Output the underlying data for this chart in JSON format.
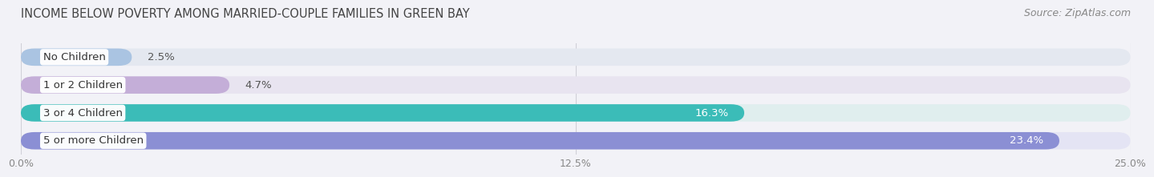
{
  "title": "INCOME BELOW POVERTY AMONG MARRIED-COUPLE FAMILIES IN GREEN BAY",
  "source": "Source: ZipAtlas.com",
  "categories": [
    "No Children",
    "1 or 2 Children",
    "3 or 4 Children",
    "5 or more Children"
  ],
  "values": [
    2.5,
    4.7,
    16.3,
    23.4
  ],
  "bar_colors": [
    "#aac4e2",
    "#c4aed8",
    "#3bbcb8",
    "#8b8fd4"
  ],
  "bar_background": [
    "#e4e8f0",
    "#e8e4f0",
    "#e0eeee",
    "#e4e4f4"
  ],
  "xlim": [
    0,
    25.0
  ],
  "xticks": [
    0.0,
    12.5,
    25.0
  ],
  "xtick_labels": [
    "0.0%",
    "12.5%",
    "25.0%"
  ],
  "title_fontsize": 10.5,
  "source_fontsize": 9,
  "bar_height": 0.62,
  "value_label_threshold": 5.0,
  "background_color": "#f2f2f7",
  "grid_color": "#d0d0d8",
  "label_fontsize": 9.5,
  "value_fontsize": 9.5
}
